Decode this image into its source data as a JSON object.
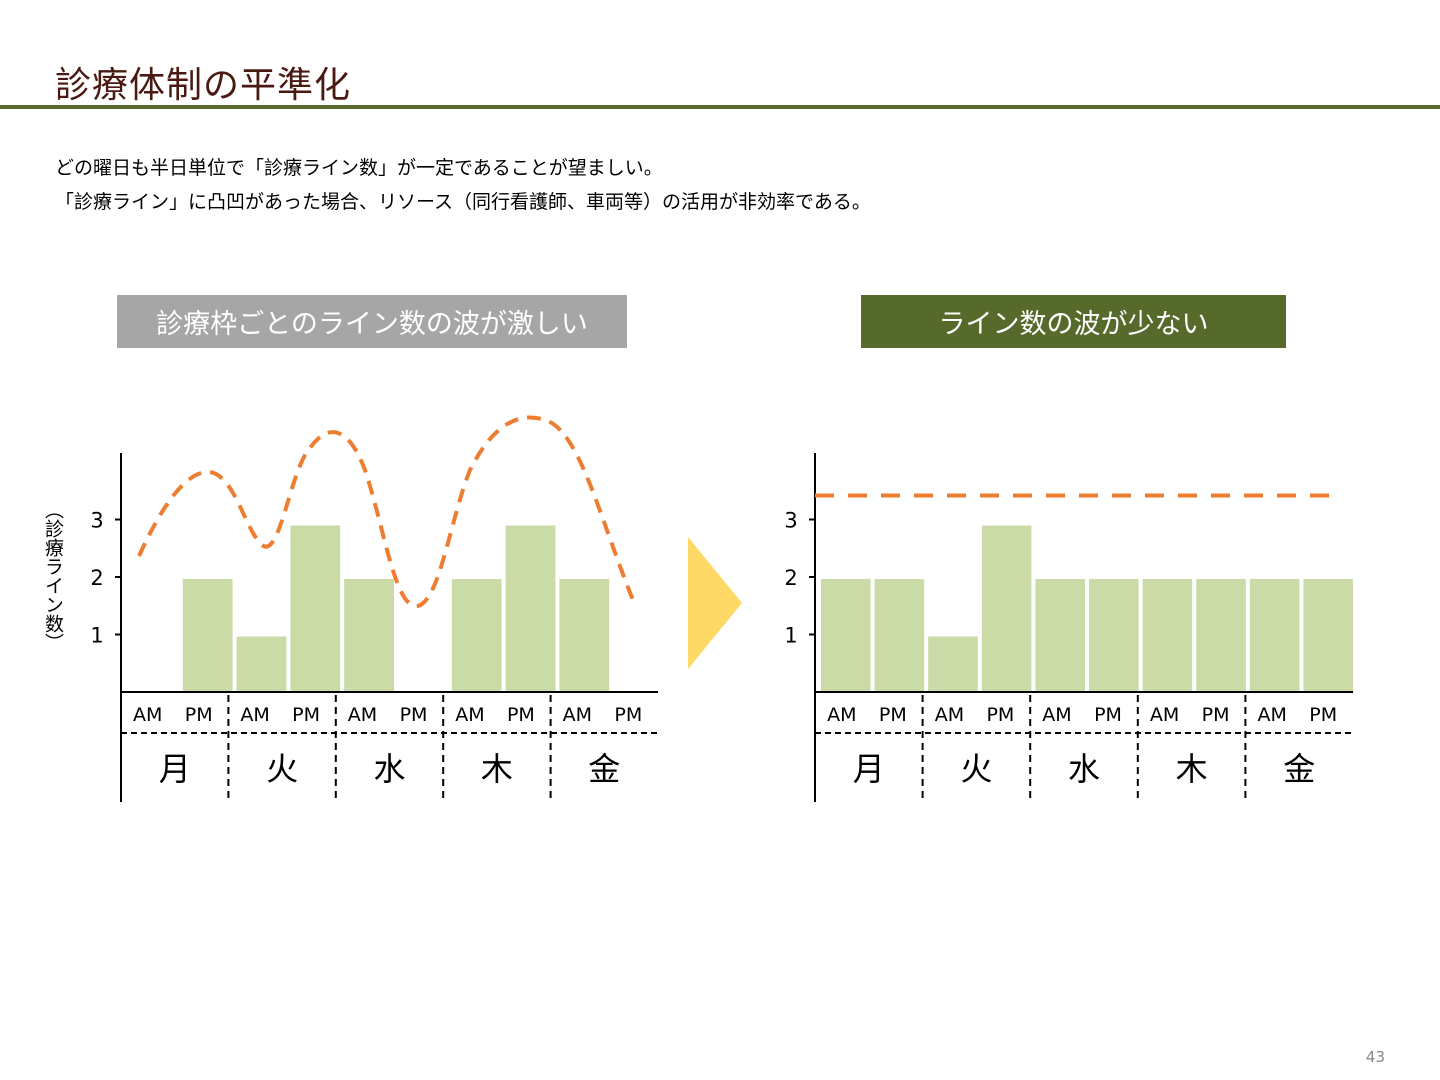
{
  "title": "診療体制の平準化",
  "description": [
    "どの曜日も半日単位で「診療ライン数」が一定であることが望ましい。",
    "「診療ライン」に凸凹があった場合、リソース（同行看護師、車両等）の活用が非効率である。"
  ],
  "badges": {
    "left": "診療枠ごとのライン数の波が激しい",
    "right": "ライン数の波が少ない"
  },
  "page_number": "43",
  "colors": {
    "bar": "#cbdba8",
    "line": "#ee7d31",
    "arrow": "#ffd966",
    "title": "#4a1a12",
    "rule": "#586b2b"
  },
  "chart_data": [
    {
      "type": "bar",
      "title": "診療枠ごとのライン数の波が激しい",
      "ylabel": "（診療ライン数）",
      "yticks": [
        "1",
        "2",
        "3"
      ],
      "ylim": [
        0,
        4
      ],
      "days": [
        "月",
        "火",
        "水",
        "木",
        "金"
      ],
      "slots": [
        "AM",
        "PM"
      ],
      "values": [
        0,
        2,
        1,
        3,
        2,
        0,
        2,
        3,
        2,
        0
      ],
      "trend": "wave"
    },
    {
      "type": "bar",
      "title": "ライン数の波が少ない",
      "yticks": [
        "1",
        "2",
        "3"
      ],
      "ylim": [
        0,
        4
      ],
      "days": [
        "月",
        "火",
        "水",
        "木",
        "金"
      ],
      "slots": [
        "AM",
        "PM"
      ],
      "values": [
        2,
        2,
        1,
        3,
        2,
        2,
        2,
        2,
        2,
        2
      ],
      "trend_level": 3.4
    }
  ]
}
